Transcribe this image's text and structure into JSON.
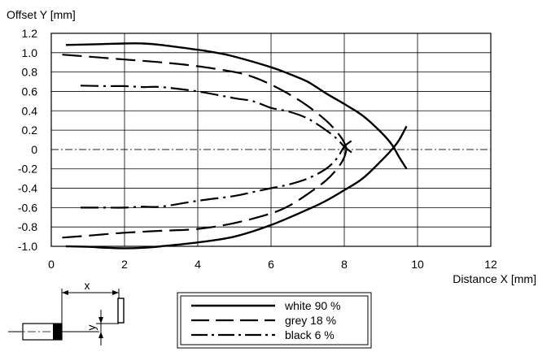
{
  "chart_data": {
    "type": "line",
    "ylabel": "Offset Y [mm]",
    "xlabel": "Distance X [mm]",
    "xlim": [
      0,
      12
    ],
    "ylim": [
      -1.0,
      1.2
    ],
    "x_ticks": [
      0,
      2,
      4,
      6,
      8,
      10,
      12
    ],
    "y_ticks": [
      1.2,
      1.0,
      0.8,
      0.6,
      0.4,
      0.2,
      0,
      -0.2,
      -0.4,
      -0.6,
      -0.8,
      -1.0
    ],
    "x_tick_labels": [
      "0",
      "2",
      "4",
      "6",
      "8",
      "10",
      "12"
    ],
    "y_tick_labels": [
      "1.2",
      "1.0",
      "0.8",
      "0.6",
      "0.4",
      "0.2",
      "0",
      "-0.2",
      "-0.4",
      "-0.6",
      "-0.8",
      "-1.0"
    ],
    "grid": true,
    "legend_position": "bottom",
    "series": [
      {
        "name": "white 90 %",
        "style": "solid",
        "upper": [
          [
            0.4,
            1.08
          ],
          [
            1,
            1.085
          ],
          [
            2,
            1.095
          ],
          [
            2.5,
            1.095
          ],
          [
            3,
            1.08
          ],
          [
            4,
            1.03
          ],
          [
            4.5,
            1.0
          ],
          [
            5,
            0.96
          ],
          [
            6,
            0.85
          ],
          [
            6.5,
            0.78
          ],
          [
            7,
            0.7
          ],
          [
            7.5,
            0.58
          ],
          [
            8,
            0.47
          ],
          [
            8.5,
            0.35
          ],
          [
            9,
            0.18
          ],
          [
            9.3,
            0.05
          ],
          [
            9.5,
            -0.08
          ],
          [
            9.7,
            -0.2
          ]
        ],
        "lower": [
          [
            0.4,
            -1.0
          ],
          [
            1,
            -1.005
          ],
          [
            1.5,
            -1.015
          ],
          [
            2,
            -1.02
          ],
          [
            2.5,
            -1.015
          ],
          [
            3,
            -1.0
          ],
          [
            4,
            -0.96
          ],
          [
            5,
            -0.9
          ],
          [
            6,
            -0.78
          ],
          [
            7,
            -0.62
          ],
          [
            7.5,
            -0.53
          ],
          [
            8,
            -0.42
          ],
          [
            8.5,
            -0.3
          ],
          [
            9,
            -0.12
          ],
          [
            9.3,
            0.0
          ],
          [
            9.5,
            0.1
          ],
          [
            9.7,
            0.24
          ]
        ]
      },
      {
        "name": "grey 18 %",
        "style": "dashed",
        "upper": [
          [
            0.3,
            0.98
          ],
          [
            1,
            0.96
          ],
          [
            2,
            0.93
          ],
          [
            3,
            0.9
          ],
          [
            4,
            0.86
          ],
          [
            5,
            0.8
          ],
          [
            5.5,
            0.75
          ],
          [
            6,
            0.67
          ],
          [
            6.5,
            0.57
          ],
          [
            7,
            0.45
          ],
          [
            7.5,
            0.3
          ],
          [
            7.8,
            0.18
          ],
          [
            8,
            0.07
          ],
          [
            8.1,
            -0.05
          ]
        ],
        "lower": [
          [
            0.3,
            -0.91
          ],
          [
            1,
            -0.89
          ],
          [
            2,
            -0.86
          ],
          [
            3,
            -0.84
          ],
          [
            4,
            -0.82
          ],
          [
            5,
            -0.76
          ],
          [
            6,
            -0.66
          ],
          [
            6.5,
            -0.58
          ],
          [
            7,
            -0.46
          ],
          [
            7.5,
            -0.32
          ],
          [
            7.8,
            -0.2
          ],
          [
            8,
            -0.08
          ],
          [
            8.1,
            0.08
          ]
        ]
      },
      {
        "name": "black 6 %",
        "style": "dashdot",
        "upper": [
          [
            0.8,
            0.66
          ],
          [
            1.5,
            0.655
          ],
          [
            2,
            0.655
          ],
          [
            2.5,
            0.645
          ],
          [
            3,
            0.645
          ],
          [
            4,
            0.6
          ],
          [
            5,
            0.53
          ],
          [
            5.5,
            0.5
          ],
          [
            6,
            0.43
          ],
          [
            6.5,
            0.39
          ],
          [
            7,
            0.32
          ],
          [
            7.5,
            0.2
          ],
          [
            7.8,
            0.11
          ],
          [
            8,
            0.03
          ],
          [
            8.2,
            -0.03
          ]
        ],
        "lower": [
          [
            0.8,
            -0.6
          ],
          [
            1.5,
            -0.6
          ],
          [
            2,
            -0.6
          ],
          [
            2.5,
            -0.59
          ],
          [
            3,
            -0.59
          ],
          [
            4,
            -0.53
          ],
          [
            5,
            -0.48
          ],
          [
            5.5,
            -0.44
          ],
          [
            6,
            -0.4
          ],
          [
            6.5,
            -0.36
          ],
          [
            7,
            -0.3
          ],
          [
            7.5,
            -0.2
          ],
          [
            7.8,
            -0.09
          ],
          [
            8,
            0.03
          ],
          [
            8.2,
            0.09
          ]
        ]
      }
    ]
  },
  "diagram": {
    "x_label": "x",
    "y_label": "y"
  }
}
